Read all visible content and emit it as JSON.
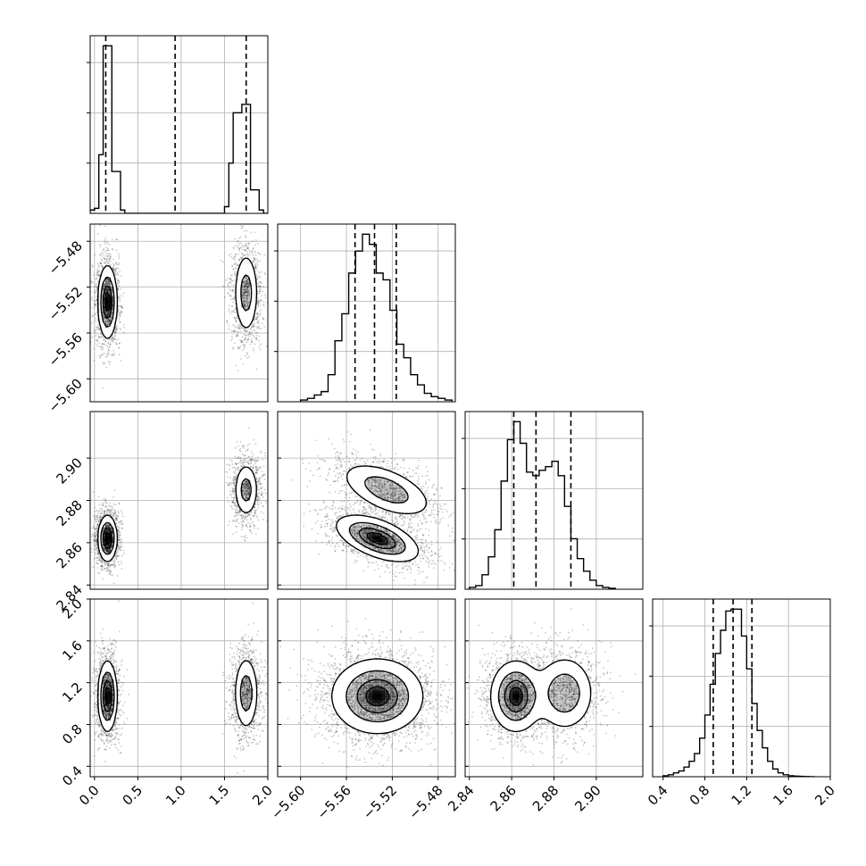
{
  "chart_data": {
    "type": "corner",
    "grid": true,
    "parameters": [
      {
        "range": [
          -0.05,
          2.0
        ],
        "ticks": [
          "0.0",
          "0.5",
          "1.0",
          "1.5",
          "2.0"
        ],
        "tick_values": [
          0.0,
          0.5,
          1.0,
          1.5,
          2.0
        ],
        "quantiles": [
          0.13,
          0.93,
          1.75
        ]
      },
      {
        "range": [
          -5.62,
          -5.465
        ],
        "ticks": [
          "−5.60",
          "−5.56",
          "−5.52",
          "−5.48"
        ],
        "tick_values": [
          -5.6,
          -5.56,
          -5.52,
          -5.48
        ],
        "quantiles": [
          -5.5525,
          -5.5355,
          -5.5165
        ]
      },
      {
        "range": [
          2.838,
          2.922
        ],
        "ticks": [
          "2.84",
          "2.86",
          "2.88",
          "2.90"
        ],
        "tick_values": [
          2.84,
          2.86,
          2.88,
          2.9
        ],
        "quantiles": [
          2.861,
          2.8715,
          2.888
        ]
      },
      {
        "range": [
          0.3,
          2.0
        ],
        "ticks": [
          "0.4",
          "0.8",
          "1.2",
          "1.6",
          "2.0"
        ],
        "tick_values": [
          0.4,
          0.8,
          1.2,
          1.6,
          2.0
        ],
        "quantiles": [
          0.88,
          1.07,
          1.25
        ]
      }
    ],
    "histograms": [
      {
        "bin_edges": [
          -0.05,
          0.0,
          0.05,
          0.1,
          0.15,
          0.2,
          0.25,
          0.3,
          0.35,
          0.4,
          1.45,
          1.5,
          1.55,
          1.6,
          1.65,
          1.7,
          1.75,
          1.8,
          1.85,
          1.9,
          1.95,
          2.0
        ],
        "counts": [
          0.02,
          0.03,
          0.35,
          1.0,
          1.0,
          0.25,
          0.25,
          0.02,
          0.0,
          0.0,
          0.0,
          0.04,
          0.3,
          0.6,
          0.6,
          0.65,
          0.65,
          0.14,
          0.14,
          0.02,
          0.0
        ]
      },
      {
        "bin_edges": [
          -5.6,
          -5.594,
          -5.588,
          -5.582,
          -5.576,
          -5.57,
          -5.564,
          -5.558,
          -5.552,
          -5.546,
          -5.54,
          -5.534,
          -5.528,
          -5.522,
          -5.516,
          -5.51,
          -5.504,
          -5.498,
          -5.492,
          -5.486,
          -5.48,
          -5.474,
          -5.468
        ],
        "counts": [
          0.01,
          0.02,
          0.04,
          0.06,
          0.16,
          0.36,
          0.52,
          0.76,
          0.89,
          0.99,
          0.93,
          0.76,
          0.72,
          0.54,
          0.34,
          0.26,
          0.16,
          0.1,
          0.05,
          0.03,
          0.02,
          0.01
        ]
      },
      {
        "bin_edges": [
          2.84,
          2.843,
          2.846,
          2.849,
          2.852,
          2.855,
          2.858,
          2.861,
          2.864,
          2.867,
          2.87,
          2.873,
          2.876,
          2.879,
          2.882,
          2.885,
          2.888,
          2.891,
          2.894,
          2.897,
          2.9,
          2.903,
          2.906,
          2.909
        ],
        "counts": [
          0.01,
          0.02,
          0.08,
          0.18,
          0.33,
          0.6,
          0.83,
          0.93,
          0.81,
          0.65,
          0.63,
          0.66,
          0.68,
          0.71,
          0.63,
          0.46,
          0.28,
          0.17,
          0.1,
          0.05,
          0.02,
          0.01,
          0.005
        ]
      },
      {
        "bin_edges": [
          0.4,
          0.45,
          0.5,
          0.55,
          0.6,
          0.65,
          0.7,
          0.75,
          0.8,
          0.85,
          0.9,
          0.95,
          1.0,
          1.05,
          1.1,
          1.15,
          1.2,
          1.25,
          1.3,
          1.35,
          1.4,
          1.45,
          1.5,
          1.55,
          1.6,
          1.65,
          1.7,
          1.75,
          1.8,
          1.85
        ],
        "counts": [
          0.005,
          0.01,
          0.02,
          0.03,
          0.05,
          0.08,
          0.12,
          0.2,
          0.32,
          0.48,
          0.64,
          0.76,
          0.86,
          0.87,
          0.87,
          0.73,
          0.56,
          0.38,
          0.24,
          0.15,
          0.08,
          0.04,
          0.02,
          0.01,
          0.005,
          0.003,
          0.002,
          0.001,
          0.0
        ]
      }
    ],
    "contours_2d": [
      {
        "row": 1,
        "col": 0,
        "samples": "bimodal",
        "modes": [
          {
            "cx": 0.15,
            "cy": -5.533,
            "sx": 0.055,
            "sy": 0.016,
            "rho": 0.0,
            "weight": 0.55
          },
          {
            "cx": 1.75,
            "cy": -5.525,
            "sx": 0.07,
            "sy": 0.018,
            "rho": 0.0,
            "weight": 0.45
          }
        ]
      },
      {
        "row": 2,
        "col": 0,
        "modes": [
          {
            "cx": 0.15,
            "cy": 2.862,
            "sx": 0.055,
            "sy": 0.0055,
            "rho": 0.0,
            "weight": 0.55
          },
          {
            "cx": 1.75,
            "cy": 2.885,
            "sx": 0.07,
            "sy": 0.0065,
            "rho": 0.0,
            "weight": 0.45
          }
        ]
      },
      {
        "row": 2,
        "col": 1,
        "modes": [
          {
            "cx": -5.533,
            "cy": 2.862,
            "sx": 0.018,
            "sy": 0.0055,
            "rho": -0.55,
            "weight": 0.55
          },
          {
            "cx": -5.525,
            "cy": 2.885,
            "sx": 0.02,
            "sy": 0.0065,
            "rho": -0.55,
            "weight": 0.45
          }
        ]
      },
      {
        "row": 3,
        "col": 0,
        "modes": [
          {
            "cx": 0.15,
            "cy": 1.07,
            "sx": 0.055,
            "sy": 0.17,
            "rho": 0.0,
            "weight": 0.55
          },
          {
            "cx": 1.75,
            "cy": 1.1,
            "sx": 0.07,
            "sy": 0.18,
            "rho": 0.0,
            "weight": 0.45
          }
        ]
      },
      {
        "row": 3,
        "col": 1,
        "modes": [
          {
            "cx": -5.533,
            "cy": 1.07,
            "sx": 0.02,
            "sy": 0.18,
            "rho": 0.0,
            "weight": 1.0
          }
        ]
      },
      {
        "row": 3,
        "col": 2,
        "modes": [
          {
            "cx": 2.862,
            "cy": 1.07,
            "sx": 0.006,
            "sy": 0.17,
            "rho": 0.0,
            "weight": 0.55
          },
          {
            "cx": 2.885,
            "cy": 1.1,
            "sx": 0.007,
            "sy": 0.18,
            "rho": 0.0,
            "weight": 0.45
          }
        ]
      }
    ]
  },
  "colors": {
    "line": "#000000",
    "grid": "#b0b0b0",
    "scatter": "#000000",
    "density": "#000000"
  }
}
